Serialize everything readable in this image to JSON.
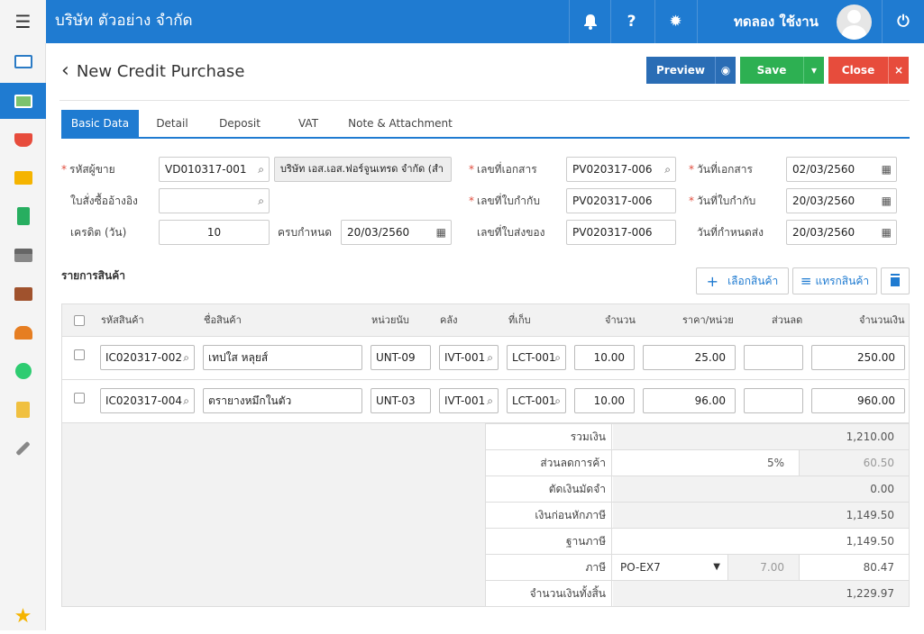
{
  "topbar": {
    "company": "บริษัท ตัวอย่าง จำกัด",
    "user": "ทดลอง ใช้งาน",
    "bell_icon": "bell-icon",
    "help_icon": "question-icon",
    "gear_icon": "gear-icon",
    "power_icon": "power-icon",
    "help_glyph": "?",
    "menu_glyph": "☰",
    "power_glyph": "⏻",
    "gear_glyph": "✹",
    "bell_glyph": "🔔"
  },
  "page": {
    "back_glyph": "‹",
    "title": "New Credit Purchase"
  },
  "actions": {
    "preview": "Preview",
    "eye_glyph": "◉",
    "save": "Save",
    "caret_glyph": "▾",
    "close": "Close",
    "close_x": "×"
  },
  "tabs": [
    {
      "label": "Basic Data"
    },
    {
      "label": "Detail"
    },
    {
      "label": "Deposit"
    },
    {
      "label": "VAT"
    },
    {
      "label": "Note & Attachment"
    }
  ],
  "form": {
    "req_mark": "*",
    "vendor_code": {
      "label": "รหัสผู้ขาย",
      "value": "VD010317-001",
      "name": "บริษัท เอส.เอส.ฟอร์จูนเทรด จำกัด (สำ"
    },
    "po_ref": {
      "label": "ใบสั่งซื้ออ้างอิง",
      "value": ""
    },
    "credit_days": {
      "label": "เครดิต (วัน)",
      "value": "10"
    },
    "due_date": {
      "label": "ครบกำหนด",
      "value": "20/03/2560"
    },
    "doc_no": {
      "label": "เลขที่เอกสาร",
      "value": "PV020317-006"
    },
    "tax_invoice_no": {
      "label": "เลขที่ใบกำกับ",
      "value": "PV020317-006"
    },
    "delivery_no": {
      "label": "เลขที่ใบส่งของ",
      "value": "PV020317-006"
    },
    "doc_date": {
      "label": "วันที่เอกสาร",
      "value": "02/03/2560"
    },
    "tax_invoice_date": {
      "label": "วันที่ใบกำกับ",
      "value": "20/03/2560"
    },
    "delivery_date": {
      "label": "วันที่กำหนดส่ง",
      "value": "20/03/2560"
    },
    "search_glyph": "⌕",
    "cal_glyph": "▦"
  },
  "items": {
    "section_title": "รายการสินค้า",
    "select_btn": "เลือกสินค้า",
    "insert_btn": "แทรกสินค้า",
    "plus_glyph": "+",
    "insert_glyph": "≡",
    "trash_glyph": "🗑",
    "columns": {
      "code": "รหัสสินค้า",
      "name": "ชื่อสินค้า",
      "unit": "หน่วยนับ",
      "warehouse": "คลัง",
      "location": "ที่เก็บ",
      "qty": "จำนวน",
      "price": "ราคา/หน่วย",
      "discount": "ส่วนลด",
      "amount": "จำนวนเงิน"
    },
    "rows": [
      {
        "code": "IC020317-002",
        "name": "เทปใส หลุยส์",
        "unit": "UNT-09",
        "warehouse": "IVT-001",
        "location": "LCT-001",
        "qty": "10.00",
        "price": "25.00",
        "discount": "",
        "amount": "250.00"
      },
      {
        "code": "IC020317-004",
        "name": "ตรายางหมึกในตัว",
        "unit": "UNT-03",
        "warehouse": "IVT-001",
        "location": "LCT-001",
        "qty": "10.00",
        "price": "96.00",
        "discount": "",
        "amount": "960.00"
      }
    ]
  },
  "summary": {
    "total": {
      "label": "รวมเงิน",
      "value": "1,210.00"
    },
    "trade_discount": {
      "label": "ส่วนลดการค้า",
      "percent": "5%",
      "value": "60.50"
    },
    "deposit": {
      "label": "ตัดเงินมัดจำ",
      "value": "0.00"
    },
    "before_tax": {
      "label": "เงินก่อนหักภาษี",
      "value": "1,149.50"
    },
    "tax_base": {
      "label": "ฐานภาษี",
      "value": "1,149.50"
    },
    "tax": {
      "label": "ภาษี",
      "code": "PO-EX7",
      "rate": "7.00",
      "value": "80.47"
    },
    "grand_total": {
      "label": "จำนวนเงินทั้งสิ้น",
      "value": "1,229.97"
    }
  }
}
